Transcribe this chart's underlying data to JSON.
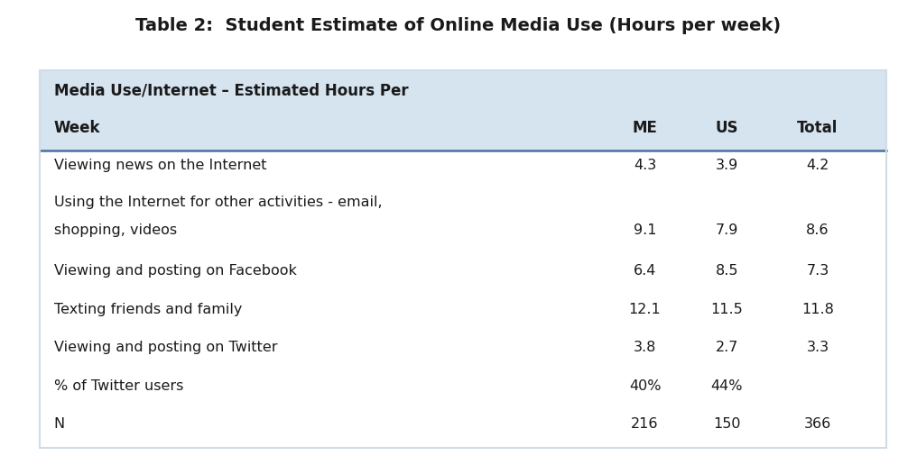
{
  "title": "Table 2:  Student Estimate of Online Media Use (Hours per week)",
  "title_fontsize": 14,
  "header_bg_color": "#d6e4f0",
  "header_text_line1": "Media Use/Internet – Estimated Hours Per",
  "header_text_line2": "Week",
  "col_headers": [
    "ME",
    "US",
    "Total"
  ],
  "rows": [
    {
      "label_lines": [
        "Viewing news on the Internet"
      ],
      "me": "4.3",
      "us": "3.9",
      "total": "4.2"
    },
    {
      "label_lines": [
        "Using the Internet for other activities - email,",
        "shopping, videos"
      ],
      "me": "9.1",
      "us": "7.9",
      "total": "8.6"
    },
    {
      "label_lines": [
        "Viewing and posting on Facebook"
      ],
      "me": "6.4",
      "us": "8.5",
      "total": "7.3"
    },
    {
      "label_lines": [
        "Texting friends and family"
      ],
      "me": "12.1",
      "us": "11.5",
      "total": "11.8"
    },
    {
      "label_lines": [
        "Viewing and posting on Twitter"
      ],
      "me": "3.8",
      "us": "2.7",
      "total": "3.3"
    },
    {
      "label_lines": [
        "% of Twitter users"
      ],
      "me": "40%",
      "us": "44%",
      "total": ""
    },
    {
      "label_lines": [
        "N"
      ],
      "me": "216",
      "us": "150",
      "total": "366"
    }
  ],
  "bg_color": "#ffffff",
  "text_color": "#1a1a1a",
  "header_text_color": "#1a1a1a",
  "separator_color": "#4a6fa5",
  "table_border_color": "#d0dce8",
  "data_fontsize": 11.5,
  "header_fontsize": 12
}
